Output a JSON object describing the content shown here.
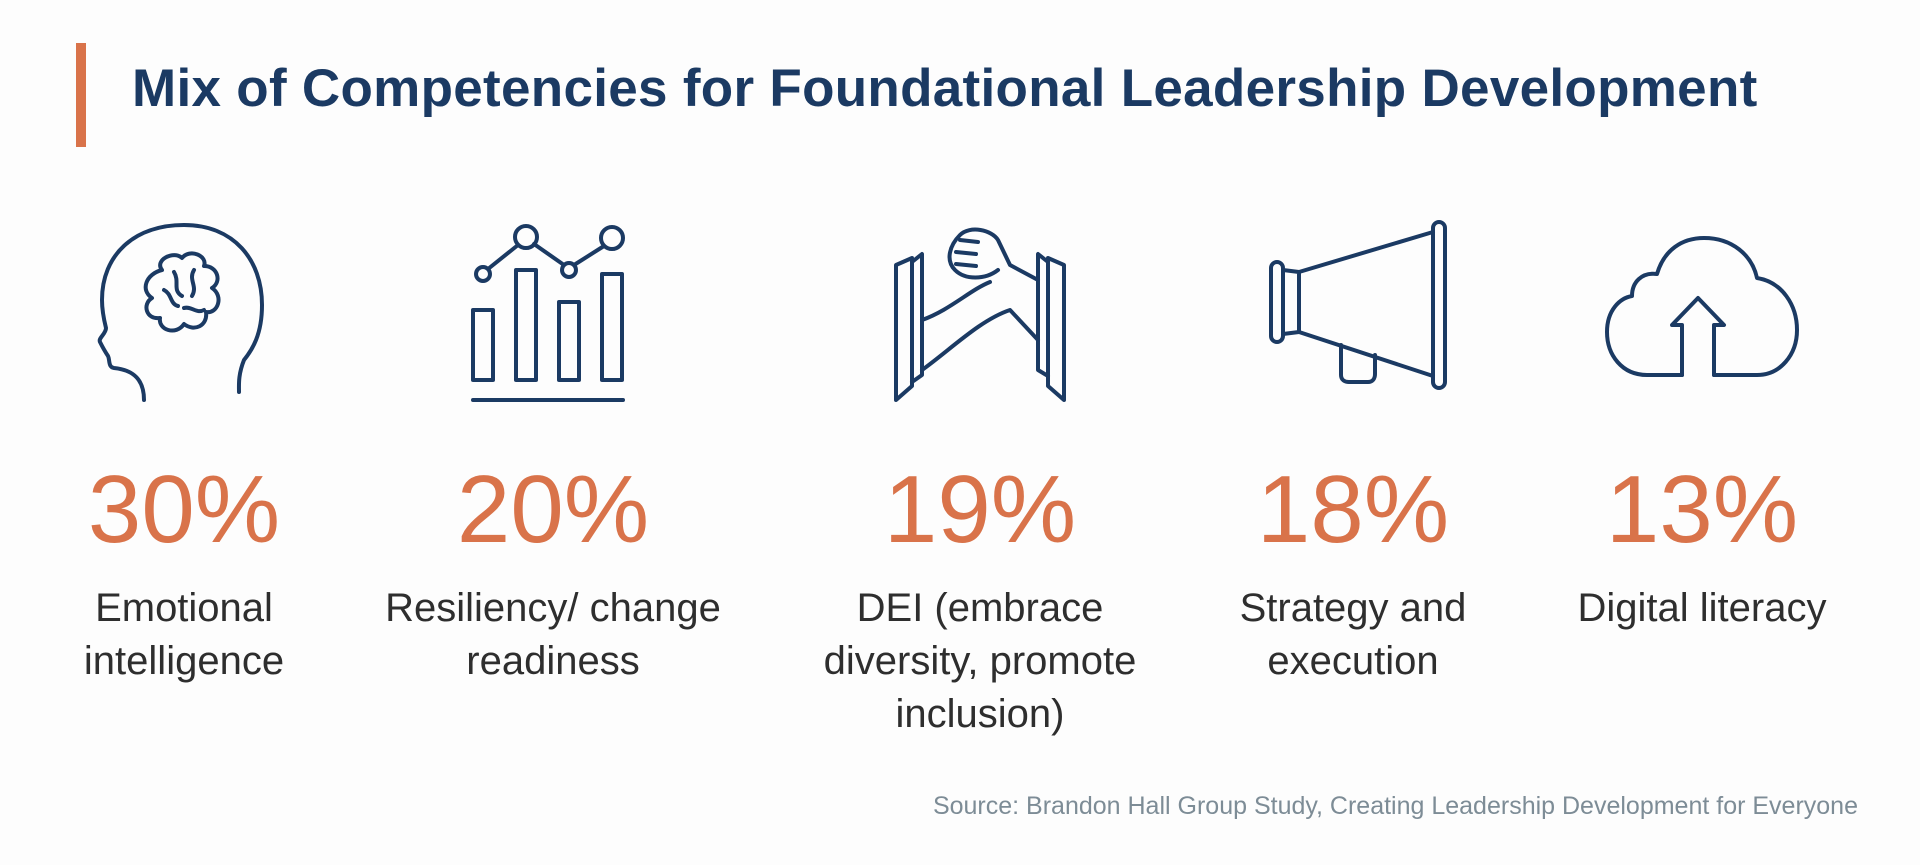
{
  "title": "Mix of Competencies for Foundational Leadership Development",
  "colors": {
    "accent": "#d9734a",
    "title": "#1b3a63",
    "icon": "#1b3a63",
    "label": "#2e2e2e",
    "source": "#7d8c96"
  },
  "items": [
    {
      "icon": "head-brain-icon",
      "percent": "30%",
      "label": "Emotional intelligence"
    },
    {
      "icon": "bar-line-chart-icon",
      "percent": "20%",
      "label": "Resiliency/ change readiness"
    },
    {
      "icon": "handshake-icon",
      "percent": "19%",
      "label": "DEI (embrace diversity, promote inclusion)"
    },
    {
      "icon": "megaphone-icon",
      "percent": "18%",
      "label": "Strategy and execution"
    },
    {
      "icon": "cloud-upload-icon",
      "percent": "13%",
      "label": "Digital literacy"
    }
  ],
  "source": "Source: Brandon Hall Group Study, Creating Leadership Development for Everyone"
}
